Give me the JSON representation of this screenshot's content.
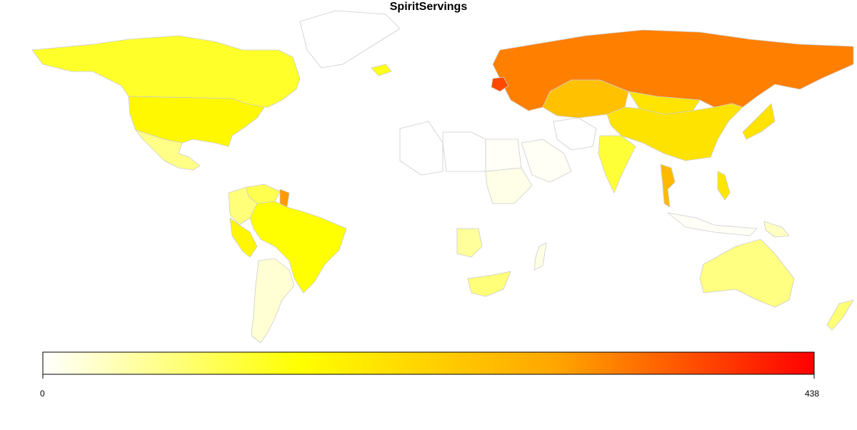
{
  "title": "SpiritServings",
  "legend": {
    "min_label": "0",
    "max_label": "438",
    "min": 0,
    "max": 438,
    "colors": [
      "#ffffff",
      "#ffff00",
      "#ffa500",
      "#ff0000"
    ]
  },
  "map": {
    "projection": "equirectangular",
    "border_color": "#cccccc",
    "no_data_color": "#ffffff",
    "regions": [
      {
        "name": "Canada",
        "value": 122
      },
      {
        "name": "United States",
        "value": 158
      },
      {
        "name": "Mexico",
        "value": 68
      },
      {
        "name": "Brazil",
        "value": 145
      },
      {
        "name": "Argentina",
        "value": 25
      },
      {
        "name": "Peru",
        "value": 160
      },
      {
        "name": "Colombia",
        "value": 76
      },
      {
        "name": "Venezuela",
        "value": 100
      },
      {
        "name": "Guyana",
        "value": 302
      },
      {
        "name": "Greenland",
        "value": 0
      },
      {
        "name": "Iceland",
        "value": 133
      },
      {
        "name": "Russia",
        "value": 326
      },
      {
        "name": "Belarus",
        "value": 373
      },
      {
        "name": "Kazakhstan",
        "value": 246
      },
      {
        "name": "China",
        "value": 192
      },
      {
        "name": "Mongolia",
        "value": 189
      },
      {
        "name": "India",
        "value": 114
      },
      {
        "name": "Thailand",
        "value": 258
      },
      {
        "name": "Japan",
        "value": 192
      },
      {
        "name": "Philippines",
        "value": 186
      },
      {
        "name": "Australia",
        "value": 72
      },
      {
        "name": "New Zealand",
        "value": 79
      },
      {
        "name": "Algeria",
        "value": 0
      },
      {
        "name": "Libya",
        "value": 0
      },
      {
        "name": "Egypt",
        "value": 4
      },
      {
        "name": "Sudan",
        "value": 13
      },
      {
        "name": "Angola",
        "value": 57
      },
      {
        "name": "South Africa",
        "value": 76
      },
      {
        "name": "Madagascar",
        "value": 15
      },
      {
        "name": "Saudi Arabia",
        "value": 5
      },
      {
        "name": "Iran",
        "value": 0
      },
      {
        "name": "Indonesia",
        "value": 4
      },
      {
        "name": "Papua New Guinea",
        "value": 35
      }
    ]
  }
}
